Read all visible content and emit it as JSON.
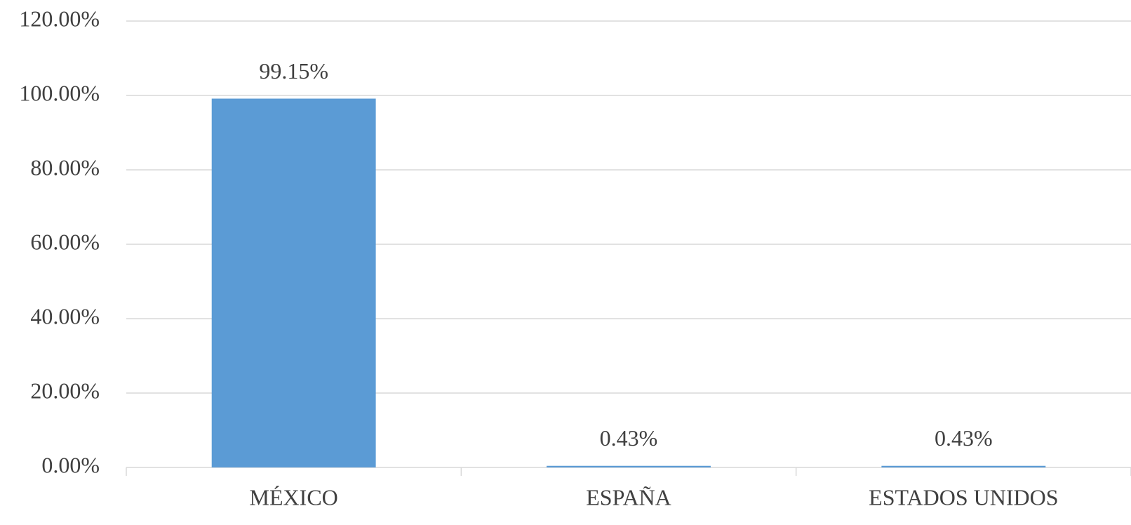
{
  "chart_data": {
    "type": "bar",
    "categories": [
      "MÉXICO",
      "ESPAÑA",
      "ESTADOS UNIDOS"
    ],
    "values": [
      99.15,
      0.43,
      0.43
    ],
    "value_labels": [
      "99.15%",
      "0.43%",
      "0.43%"
    ],
    "color": "#5b9bd5",
    "ylim": [
      0,
      120
    ],
    "yticks": [
      {
        "value": 0,
        "label": "0.00%"
      },
      {
        "value": 20,
        "label": "20.00%"
      },
      {
        "value": 40,
        "label": "40.00%"
      },
      {
        "value": 60,
        "label": "60.00%"
      },
      {
        "value": 80,
        "label": "80.00%"
      },
      {
        "value": 100,
        "label": "100.00%"
      },
      {
        "value": 120,
        "label": "120.00%"
      }
    ],
    "grid": true
  }
}
